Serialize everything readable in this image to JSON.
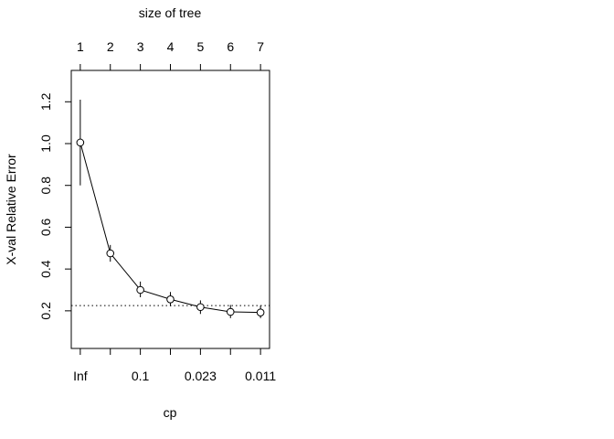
{
  "chart_data": {
    "type": "line",
    "title": "",
    "top_axis_label": "size of tree",
    "xlabel": "cp",
    "ylabel": "X-val Relative Error",
    "top_ticks": [
      "1",
      "2",
      "3",
      "4",
      "5",
      "6",
      "7"
    ],
    "bottom_ticks": [
      {
        "index": 1,
        "label": "Inf"
      },
      {
        "index": 3,
        "label": "0.1"
      },
      {
        "index": 5,
        "label": "0.023"
      },
      {
        "index": 7,
        "label": "0.011"
      }
    ],
    "y_ticks": [
      "0.2",
      "0.4",
      "0.6",
      "0.8",
      "1.0",
      "1.2"
    ],
    "ylim": [
      0.02,
      1.35
    ],
    "xlim": [
      0.7,
      7.3
    ],
    "series": [
      {
        "x": [
          1,
          2,
          3,
          4,
          5,
          6,
          7
        ],
        "y": [
          1.005,
          0.475,
          0.3,
          0.255,
          0.218,
          0.195,
          0.192
        ],
        "err_lo": [
          0.8,
          0.435,
          0.265,
          0.222,
          0.185,
          0.165,
          0.165
        ],
        "err_hi": [
          1.21,
          0.515,
          0.34,
          0.29,
          0.25,
          0.228,
          0.225
        ]
      }
    ],
    "reference_line": {
      "y": 0.225,
      "style": "dotted"
    },
    "grid": false,
    "legend": "none"
  }
}
